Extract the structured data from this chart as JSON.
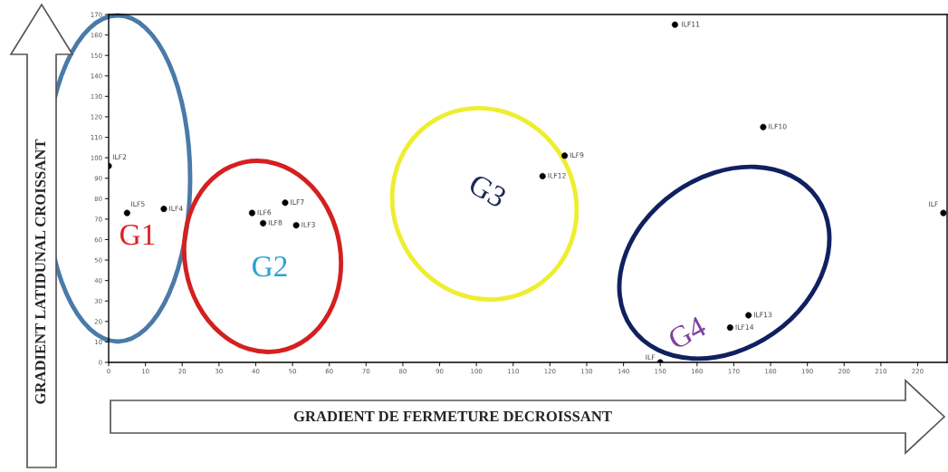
{
  "chart_data": {
    "type": "scatter",
    "xlabel": "GRADIENT DE FERMETURE DECROISSANT",
    "ylabel": "GRADIENT LATIDUNAL CROISSANT",
    "annotations": [
      "G1",
      "G2",
      "G3",
      "G4"
    ],
    "xlim": [
      0,
      228
    ],
    "ylim": [
      0,
      170
    ],
    "xticks": [
      0,
      10,
      20,
      30,
      40,
      50,
      60,
      70,
      80,
      90,
      100,
      110,
      120,
      130,
      140,
      150,
      160,
      170,
      180,
      190,
      200,
      210,
      220
    ],
    "yticks": [
      0,
      10,
      20,
      30,
      40,
      50,
      60,
      70,
      80,
      90,
      100,
      110,
      120,
      130,
      140,
      150,
      160,
      170
    ],
    "marker": "circle",
    "grid": false,
    "legend": false,
    "series": [
      {
        "name": "ILF2",
        "color": "#000000",
        "x": [
          0
        ],
        "values": [
          96
        ]
      },
      {
        "name": "ILF5",
        "color": "#000000",
        "x": [
          5
        ],
        "values": [
          73
        ]
      },
      {
        "name": "ILF4",
        "color": "#000000",
        "x": [
          15
        ],
        "values": [
          75
        ]
      },
      {
        "name": "ILF6",
        "color": "#000000",
        "x": [
          39
        ],
        "values": [
          73
        ]
      },
      {
        "name": "ILF8",
        "color": "#000000",
        "x": [
          42
        ],
        "values": [
          68
        ]
      },
      {
        "name": "ILF7",
        "color": "#000000",
        "x": [
          48
        ],
        "values": [
          78
        ]
      },
      {
        "name": "ILF3",
        "color": "#000000",
        "x": [
          51
        ],
        "values": [
          67
        ]
      },
      {
        "name": "ILF12",
        "color": "#000000",
        "x": [
          118
        ],
        "values": [
          91
        ]
      },
      {
        "name": "ILF9",
        "color": "#000000",
        "x": [
          124
        ],
        "values": [
          101
        ]
      },
      {
        "name": "ILF11",
        "color": "#000000",
        "x": [
          154
        ],
        "values": [
          165
        ]
      },
      {
        "name": "ILF10",
        "color": "#000000",
        "x": [
          178
        ],
        "values": [
          115
        ]
      },
      {
        "name": "ILF",
        "color": "#000000",
        "x": [
          227
        ],
        "values": [
          73
        ]
      },
      {
        "name": "ILF13",
        "color": "#000000",
        "x": [
          174
        ],
        "values": [
          23
        ]
      },
      {
        "name": "ILF14",
        "color": "#000000",
        "x": [
          169
        ],
        "values": [
          17
        ]
      },
      {
        "name": "ILF",
        "color": "#000000",
        "x": [
          150
        ],
        "values": [
          0
        ]
      }
    ]
  }
}
